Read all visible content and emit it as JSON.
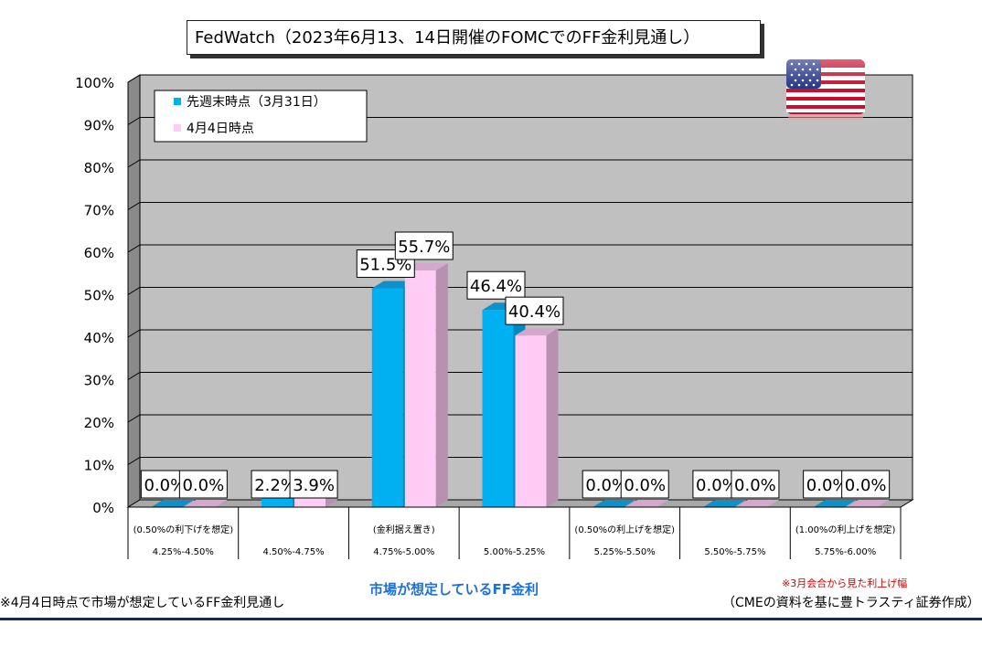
{
  "title": "FedWatch（2023年6月13、14日開催のFOMCでのFF金利見通し）",
  "chart_data": {
    "type": "bar",
    "ylim": [
      0,
      100
    ],
    "y_ticks": [
      "0%",
      "10%",
      "20%",
      "30%",
      "40%",
      "50%",
      "60%",
      "70%",
      "80%",
      "90%",
      "100%"
    ],
    "categories": [
      "4.25%-4.50%",
      "4.50%-4.75%",
      "4.75%-5.00%",
      "5.00%-5.25%",
      "5.25%-5.50%",
      "5.50%-5.75%",
      "5.75%-6.00%"
    ],
    "category_notes": [
      "(0.50%の利下げを想定)",
      "",
      "(金利据え置き)",
      "",
      "(0.50%の利上げを想定)",
      "",
      "(1.00%の利上げを想定)"
    ],
    "series": [
      {
        "name": "先週末時点（3月31日）",
        "values": [
          0.0,
          2.2,
          51.5,
          46.4,
          0.0,
          0.0,
          0.0
        ],
        "labels": [
          "0.0%",
          "2.2%",
          "51.5%",
          "46.4%",
          "0.0%",
          "0.0%",
          "0.0%"
        ],
        "color": "#00b0f0"
      },
      {
        "name": "4月4日時点",
        "values": [
          0.0,
          3.9,
          55.7,
          40.4,
          0.0,
          0.0,
          0.0
        ],
        "labels": [
          "0.0%",
          "3.9%",
          "55.7%",
          "40.4%",
          "0.0%",
          "0.0%",
          "0.0%"
        ],
        "color": "#ffccf5"
      }
    ],
    "grid": true,
    "legend_position": "top-left"
  },
  "footnote_left": "※4月4日時点で市場が想定しているFF金利見通し",
  "xaxis_title": "市場が想定しているFF金利",
  "note_red": "※3月会合から見た利上げ幅",
  "source": "（CMEの資料を基に豊トラスティ証券作成）",
  "flag_icon": "us-flag-icon"
}
